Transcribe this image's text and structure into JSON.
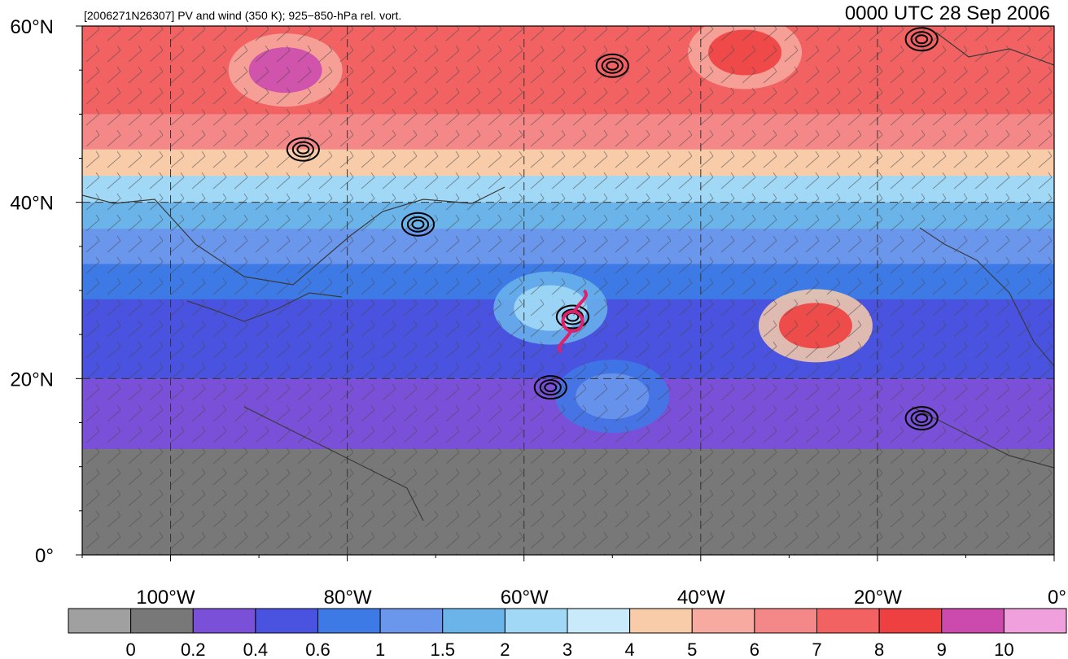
{
  "header": {
    "left_title": "[2006271N26307] PV and wind (350 K); 925−850-hPa rel. vort.",
    "right_title": "0000 UTC 28 Sep 2006"
  },
  "map": {
    "lon_min": -110,
    "lon_max": 0,
    "lat_min": 0,
    "lat_max": 60,
    "grid_lons": [
      -100,
      -80,
      -60,
      -40,
      -20
    ],
    "grid_lats": [
      20,
      40
    ],
    "lat_labels": [
      {
        "lat": 60,
        "text": "60°N"
      },
      {
        "lat": 40,
        "text": "40°N"
      },
      {
        "lat": 20,
        "text": "20°N"
      },
      {
        "lat": 0,
        "text": "0°"
      }
    ],
    "lon_labels": [
      {
        "lon": -100,
        "text": "100°W"
      },
      {
        "lon": -80,
        "text": "80°W"
      },
      {
        "lon": -60,
        "text": "60°W"
      },
      {
        "lon": -40,
        "text": "40°W"
      },
      {
        "lon": -20,
        "text": "20°W"
      },
      {
        "lon": 0,
        "text": "0°"
      }
    ],
    "storm_symbol": {
      "lon": -54.5,
      "lat": 26.5,
      "color": "#e0206a",
      "icon": "tropical-cyclone-icon"
    },
    "pv_bands": [
      {
        "lat": 60.0,
        "pv": 7.5
      },
      {
        "lat": 55.0,
        "pv": 8.0
      },
      {
        "lat": 50.0,
        "pv": 6.8
      },
      {
        "lat": 46.0,
        "pv": 5.2
      },
      {
        "lat": 43.0,
        "pv": 3.5
      },
      {
        "lat": 40.0,
        "pv": 1.8
      },
      {
        "lat": 37.0,
        "pv": 1.2
      },
      {
        "lat": 33.0,
        "pv": 0.9
      },
      {
        "lat": 29.0,
        "pv": 0.6
      },
      {
        "lat": 25.0,
        "pv": 0.5
      },
      {
        "lat": 20.0,
        "pv": 0.4
      },
      {
        "lat": 16.0,
        "pv": 0.3
      },
      {
        "lat": 12.0,
        "pv": 0.2
      },
      {
        "lat": 8.0,
        "pv": 0.1
      },
      {
        "lat": 4.0,
        "pv": 0.15
      },
      {
        "lat": 0.0,
        "pv": 0.1
      }
    ],
    "pv_features": [
      {
        "lon": -57,
        "lat": 28,
        "pv": 2.5
      },
      {
        "lon": -27,
        "lat": 26,
        "pv": 8.0
      },
      {
        "lon": -87,
        "lat": 55,
        "pv": 9.0
      },
      {
        "lon": -35,
        "lat": 57,
        "pv": 8.5
      },
      {
        "lon": -50,
        "lat": 18,
        "pv": 1.0
      }
    ],
    "vorticity_centers": [
      {
        "lon": -54.5,
        "lat": 27
      },
      {
        "lon": -57,
        "lat": 19
      },
      {
        "lon": -72,
        "lat": 37.5
      },
      {
        "lon": -85,
        "lat": 46
      },
      {
        "lon": -50,
        "lat": 55.5
      },
      {
        "lon": -15,
        "lat": 58.5
      },
      {
        "lon": -15,
        "lat": 15.5
      }
    ]
  },
  "colorbar": {
    "colors": [
      "#a0a0a0",
      "#787878",
      "#7a50d8",
      "#4a52e0",
      "#3d7ae6",
      "#6a96ec",
      "#6ab4ea",
      "#a0d8f6",
      "#c8eafa",
      "#f8cca8",
      "#f6aaa0",
      "#f48888",
      "#f26262",
      "#ee4040",
      "#cc4aae",
      "#f0a0dc"
    ],
    "labels": [
      "0",
      "0.2",
      "0.4",
      "0.6",
      "1",
      "1.5",
      "2",
      "3",
      "4",
      "5",
      "6",
      "7",
      "8",
      "9",
      "10"
    ]
  }
}
